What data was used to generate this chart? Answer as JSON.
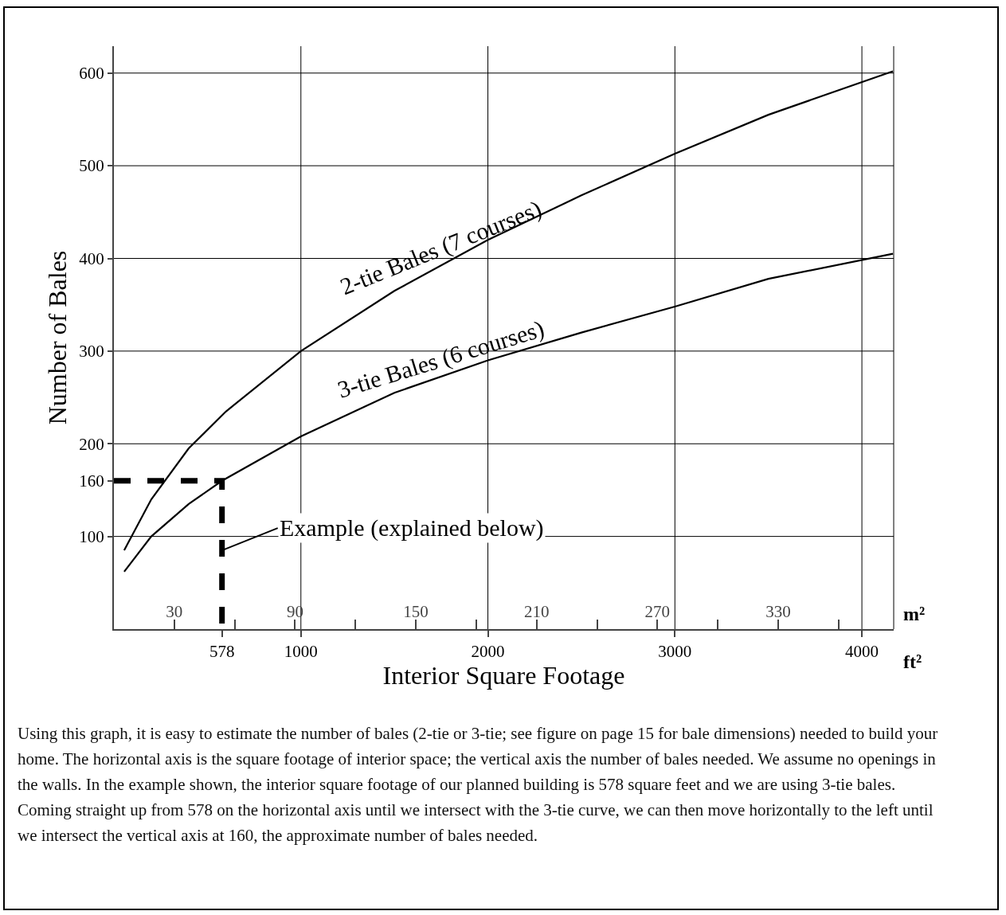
{
  "chart_data": {
    "type": "line",
    "xlabel": "Interior Square Footage",
    "ylabel": "Number of Bales",
    "x2label": "m²",
    "xlim": [
      0,
      4170
    ],
    "xticks": [
      {
        "value": 578,
        "label": "578"
      },
      1000,
      2000,
      3000,
      4000
    ],
    "x2lim": [
      0,
      387.4
    ],
    "x2ticks": [
      30,
      {
        "value": 60,
        "label": null
      },
      90,
      {
        "value": 120,
        "label": null
      },
      150,
      {
        "value": 180,
        "label": null
      },
      210,
      {
        "value": 240,
        "label": null
      },
      270,
      {
        "value": 300,
        "label": null
      },
      330,
      {
        "value": 360,
        "label": null
      }
    ],
    "ylim": [
      0,
      629
    ],
    "yticks": [
      100,
      {
        "value": 160,
        "label": "160"
      },
      200,
      300,
      400,
      500,
      600
    ],
    "grid": true,
    "legend": false,
    "marker": "none",
    "series": [
      {
        "name": "2-tie Bales (7 courses)",
        "color": "#000000",
        "x": [
          55,
          200,
          400,
          600,
          1000,
          1500,
          2000,
          2500,
          3000,
          3500,
          4166
        ],
        "values": [
          85,
          140,
          195,
          235,
          300,
          365,
          420,
          468,
          513,
          555,
          602
        ]
      },
      {
        "name": "3-tie Bales (6 courses)",
        "color": "#000000",
        "x": [
          55,
          200,
          400,
          578,
          1000,
          1500,
          2000,
          2500,
          3000,
          3500,
          4166
        ],
        "values": [
          62,
          100,
          135,
          160,
          208,
          255,
          290,
          320,
          348,
          378,
          405
        ]
      },
      {
        "color": "#000000",
        "line_style": "dashed",
        "x": [
          0,
          578,
          578
        ],
        "values": [
          160,
          160,
          0
        ]
      }
    ],
    "annotations": [
      {
        "text": "Example (explained below)",
        "x": 578,
        "y": 85
      },
      "ft²",
      "Using this graph, it is easy to estimate the number of bales (2-tie or 3-tie; see figure on page 15 for bale dimensions) needed to build your home.  The horizontal axis is the square footage of interior space;  the vertical axis the number of bales needed.  We assume no openings in the walls.  In the example shown, the interior square footage of our planned building is 578 square feet and we are using 3-tie bales.  Coming straight up from 578 on the horizontal axis until we intersect with the 3-tie curve, we can then move horizontally to the left until we intersect the vertical axis at 160, the approximate number of bales needed."
    ]
  }
}
